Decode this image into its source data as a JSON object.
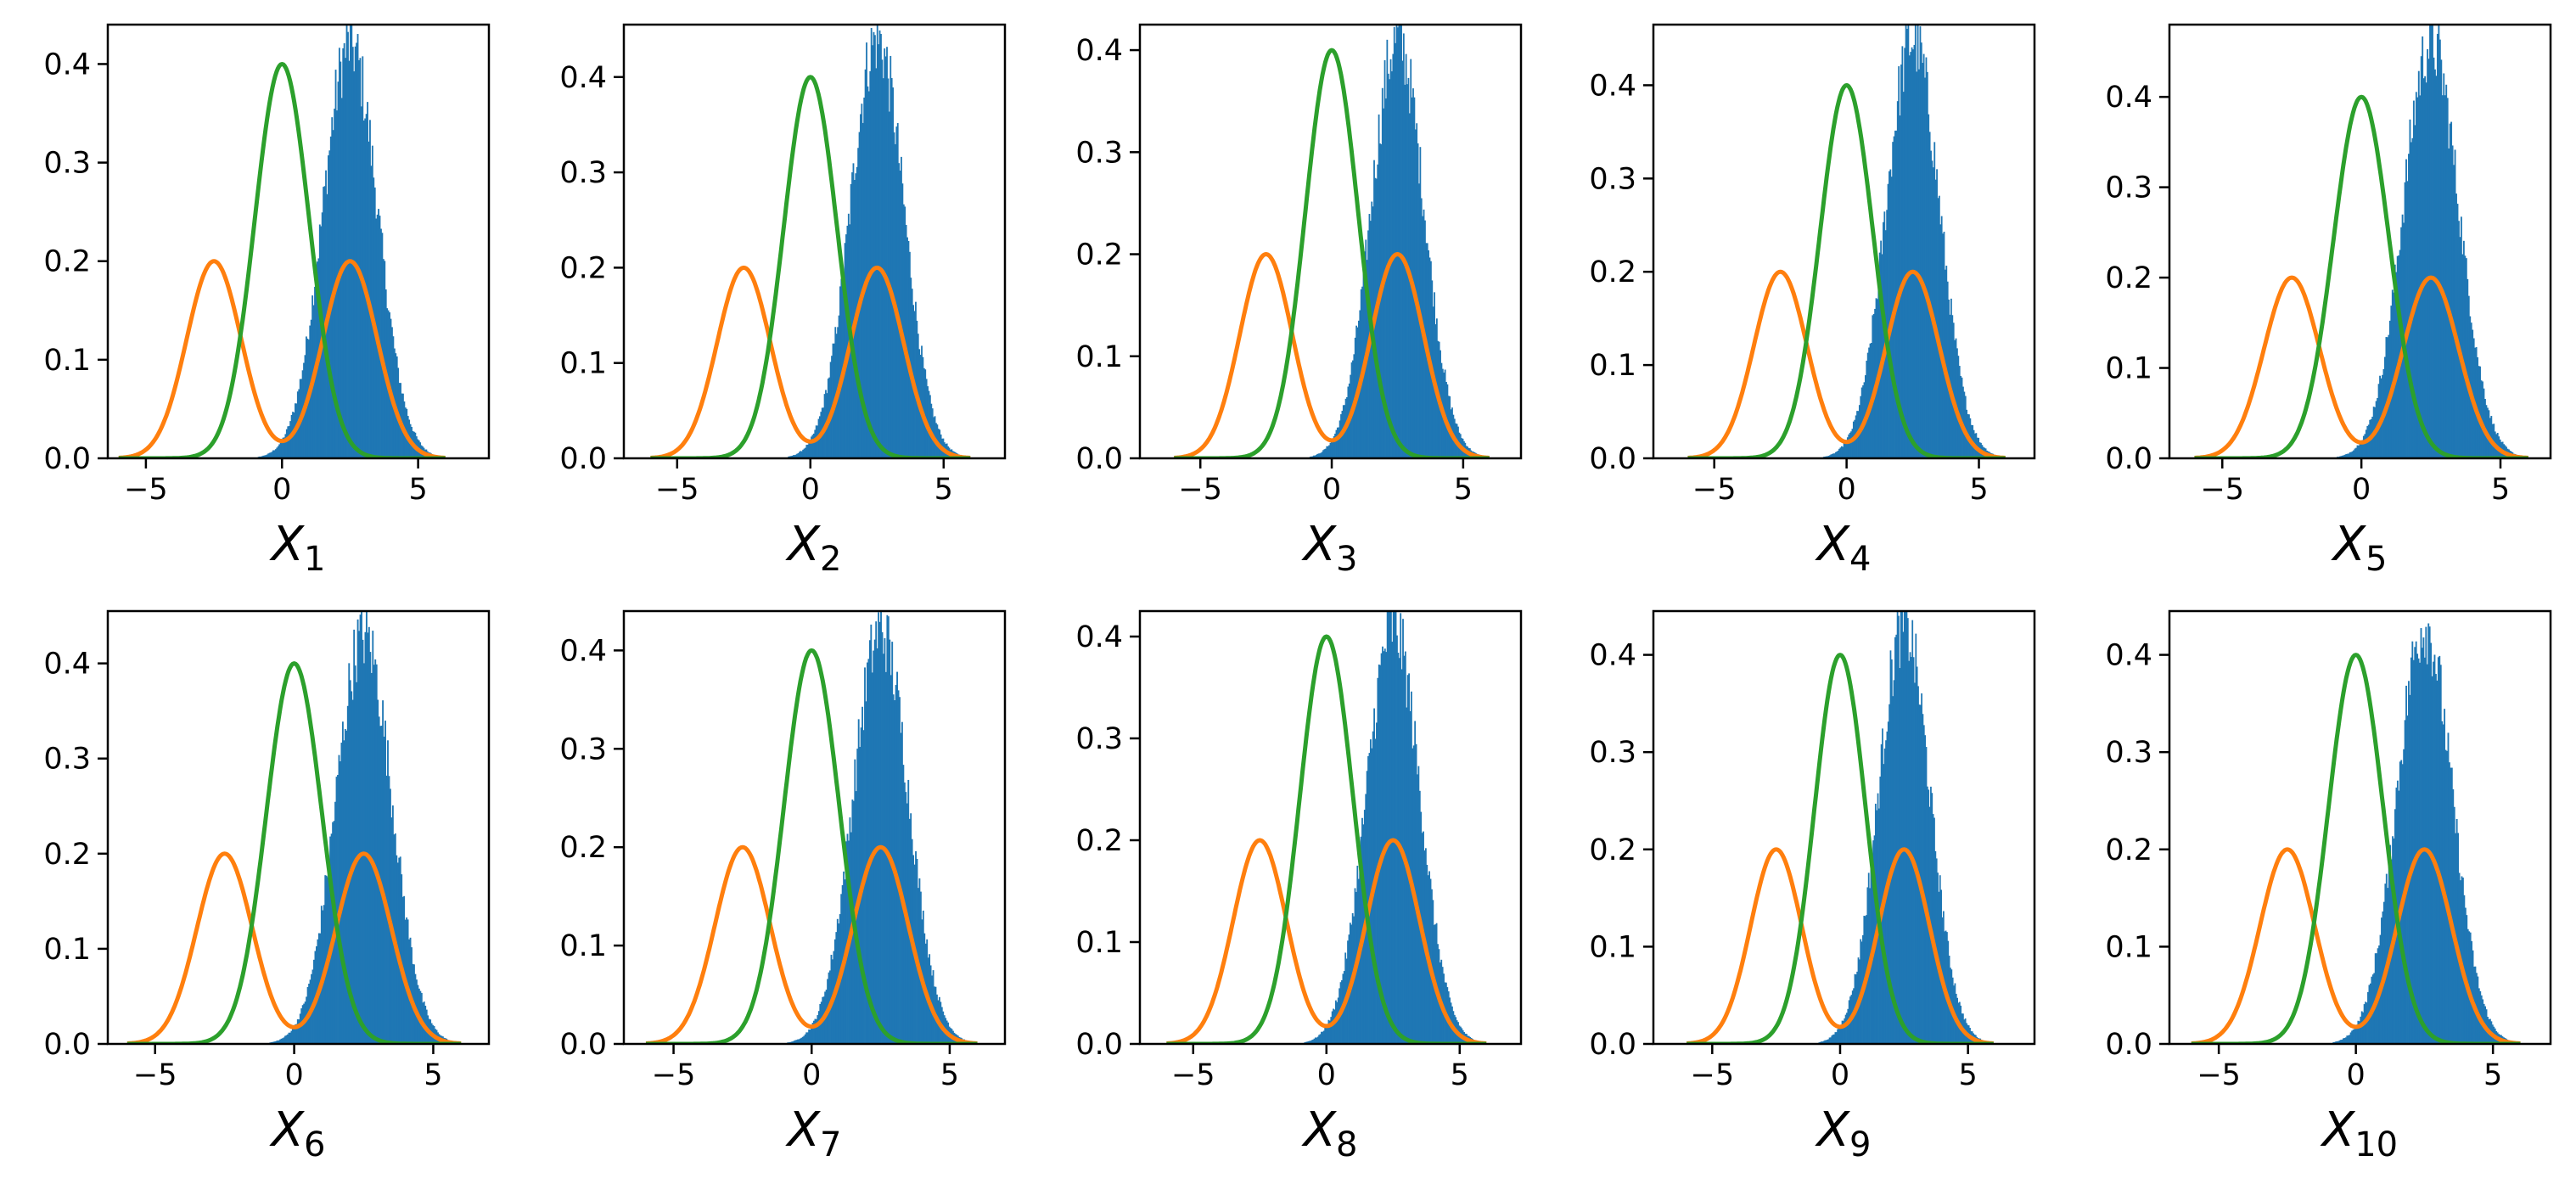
{
  "figure": {
    "colors": {
      "histogram": "#1f77b4",
      "mixture_pdf": "#ff7f0e",
      "normal_pdf": "#2ca02c",
      "axes": "#000000",
      "background": "#ffffff"
    }
  },
  "chart_data": [
    {
      "type": "histogram+line",
      "xlabel": "X",
      "xlabel_sub": "1",
      "xticks": [
        -5,
        0,
        5
      ],
      "yticks": [
        0.0,
        0.1,
        0.2,
        0.3,
        0.4
      ],
      "xlim": [
        -6.4,
        7.6
      ],
      "ylim": [
        0,
        0.44
      ],
      "hist": {
        "center": 2.5,
        "sd": 1.0,
        "peak": 0.42
      },
      "series": [
        {
          "kind": "mixture",
          "means": [
            -2.5,
            2.5
          ],
          "sd": 1.0,
          "peak": 0.2
        },
        {
          "kind": "normal",
          "mean": 0,
          "sd": 1.0,
          "peak": 0.4
        }
      ]
    },
    {
      "type": "histogram+line",
      "xlabel": "X",
      "xlabel_sub": "2",
      "xticks": [
        -5,
        0,
        5
      ],
      "yticks": [
        0.0,
        0.1,
        0.2,
        0.3,
        0.4
      ],
      "xlim": [
        -7.0,
        7.3
      ],
      "ylim": [
        0,
        0.455
      ],
      "hist": {
        "center": 2.5,
        "sd": 1.0,
        "peak": 0.44
      },
      "series": [
        {
          "kind": "mixture",
          "means": [
            -2.5,
            2.5
          ],
          "sd": 1.0,
          "peak": 0.2
        },
        {
          "kind": "normal",
          "mean": 0,
          "sd": 1.0,
          "peak": 0.4
        }
      ]
    },
    {
      "type": "histogram+line",
      "xlabel": "X",
      "xlabel_sub": "3",
      "xticks": [
        -5,
        0,
        5
      ],
      "yticks": [
        0.0,
        0.1,
        0.2,
        0.3,
        0.4
      ],
      "xlim": [
        -7.3,
        7.2
      ],
      "ylim": [
        0,
        0.425
      ],
      "hist": {
        "center": 2.5,
        "sd": 1.0,
        "peak": 0.41
      },
      "series": [
        {
          "kind": "mixture",
          "means": [
            -2.5,
            2.5
          ],
          "sd": 1.0,
          "peak": 0.2
        },
        {
          "kind": "normal",
          "mean": 0,
          "sd": 1.0,
          "peak": 0.4
        }
      ]
    },
    {
      "type": "histogram+line",
      "xlabel": "X",
      "xlabel_sub": "4",
      "xticks": [
        -5,
        0,
        5
      ],
      "yticks": [
        0.0,
        0.1,
        0.2,
        0.3,
        0.4
      ],
      "xlim": [
        -7.3,
        7.1
      ],
      "ylim": [
        0,
        0.465
      ],
      "hist": {
        "center": 2.5,
        "sd": 1.0,
        "peak": 0.45
      },
      "series": [
        {
          "kind": "mixture",
          "means": [
            -2.5,
            2.5
          ],
          "sd": 1.0,
          "peak": 0.2
        },
        {
          "kind": "normal",
          "mean": 0,
          "sd": 1.0,
          "peak": 0.4
        }
      ]
    },
    {
      "type": "histogram+line",
      "xlabel": "X",
      "xlabel_sub": "5",
      "xticks": [
        -5,
        0,
        5
      ],
      "yticks": [
        0.0,
        0.1,
        0.2,
        0.3,
        0.4
      ],
      "xlim": [
        -6.9,
        6.8
      ],
      "ylim": [
        0,
        0.48
      ],
      "hist": {
        "center": 2.5,
        "sd": 1.0,
        "peak": 0.46
      },
      "series": [
        {
          "kind": "mixture",
          "means": [
            -2.5,
            2.5
          ],
          "sd": 1.0,
          "peak": 0.2
        },
        {
          "kind": "normal",
          "mean": 0,
          "sd": 1.0,
          "peak": 0.4
        }
      ]
    },
    {
      "type": "histogram+line",
      "xlabel": "X",
      "xlabel_sub": "6",
      "xticks": [
        -5,
        0,
        5
      ],
      "yticks": [
        0.0,
        0.1,
        0.2,
        0.3,
        0.4
      ],
      "xlim": [
        -6.7,
        7.0
      ],
      "ylim": [
        0,
        0.455
      ],
      "hist": {
        "center": 2.5,
        "sd": 1.0,
        "peak": 0.43
      },
      "series": [
        {
          "kind": "mixture",
          "means": [
            -2.5,
            2.5
          ],
          "sd": 1.0,
          "peak": 0.2
        },
        {
          "kind": "normal",
          "mean": 0,
          "sd": 1.0,
          "peak": 0.4
        }
      ]
    },
    {
      "type": "histogram+line",
      "xlabel": "X",
      "xlabel_sub": "7",
      "xticks": [
        -5,
        0,
        5
      ],
      "yticks": [
        0.0,
        0.1,
        0.2,
        0.3,
        0.4
      ],
      "xlim": [
        -6.8,
        7.0
      ],
      "ylim": [
        0,
        0.44
      ],
      "hist": {
        "center": 2.5,
        "sd": 1.0,
        "peak": 0.42
      },
      "series": [
        {
          "kind": "mixture",
          "means": [
            -2.5,
            2.5
          ],
          "sd": 1.0,
          "peak": 0.2
        },
        {
          "kind": "normal",
          "mean": 0,
          "sd": 1.0,
          "peak": 0.4
        }
      ]
    },
    {
      "type": "histogram+line",
      "xlabel": "X",
      "xlabel_sub": "8",
      "xticks": [
        -5,
        0,
        5
      ],
      "yticks": [
        0.0,
        0.1,
        0.2,
        0.3,
        0.4
      ],
      "xlim": [
        -7.0,
        7.3
      ],
      "ylim": [
        0,
        0.425
      ],
      "hist": {
        "center": 2.5,
        "sd": 1.0,
        "peak": 0.41
      },
      "series": [
        {
          "kind": "mixture",
          "means": [
            -2.5,
            2.5
          ],
          "sd": 1.0,
          "peak": 0.2
        },
        {
          "kind": "normal",
          "mean": 0,
          "sd": 1.0,
          "peak": 0.4
        }
      ]
    },
    {
      "type": "histogram+line",
      "xlabel": "X",
      "xlabel_sub": "9",
      "xticks": [
        -5,
        0,
        5
      ],
      "yticks": [
        0.0,
        0.1,
        0.2,
        0.3,
        0.4
      ],
      "xlim": [
        -7.3,
        7.6
      ],
      "ylim": [
        0,
        0.445
      ],
      "hist": {
        "center": 2.5,
        "sd": 1.0,
        "peak": 0.43
      },
      "series": [
        {
          "kind": "mixture",
          "means": [
            -2.5,
            2.5
          ],
          "sd": 1.0,
          "peak": 0.2
        },
        {
          "kind": "normal",
          "mean": 0,
          "sd": 1.0,
          "peak": 0.4
        }
      ]
    },
    {
      "type": "histogram+line",
      "xlabel": "X",
      "xlabel_sub": "10",
      "xticks": [
        -5,
        0,
        5
      ],
      "yticks": [
        0.0,
        0.1,
        0.2,
        0.3,
        0.4
      ],
      "xlim": [
        -6.8,
        7.1
      ],
      "ylim": [
        0,
        0.445
      ],
      "hist": {
        "center": 2.5,
        "sd": 1.0,
        "peak": 0.43
      },
      "series": [
        {
          "kind": "mixture",
          "means": [
            -2.5,
            2.5
          ],
          "sd": 1.0,
          "peak": 0.2
        },
        {
          "kind": "normal",
          "mean": 0,
          "sd": 1.0,
          "peak": 0.4
        }
      ]
    }
  ]
}
